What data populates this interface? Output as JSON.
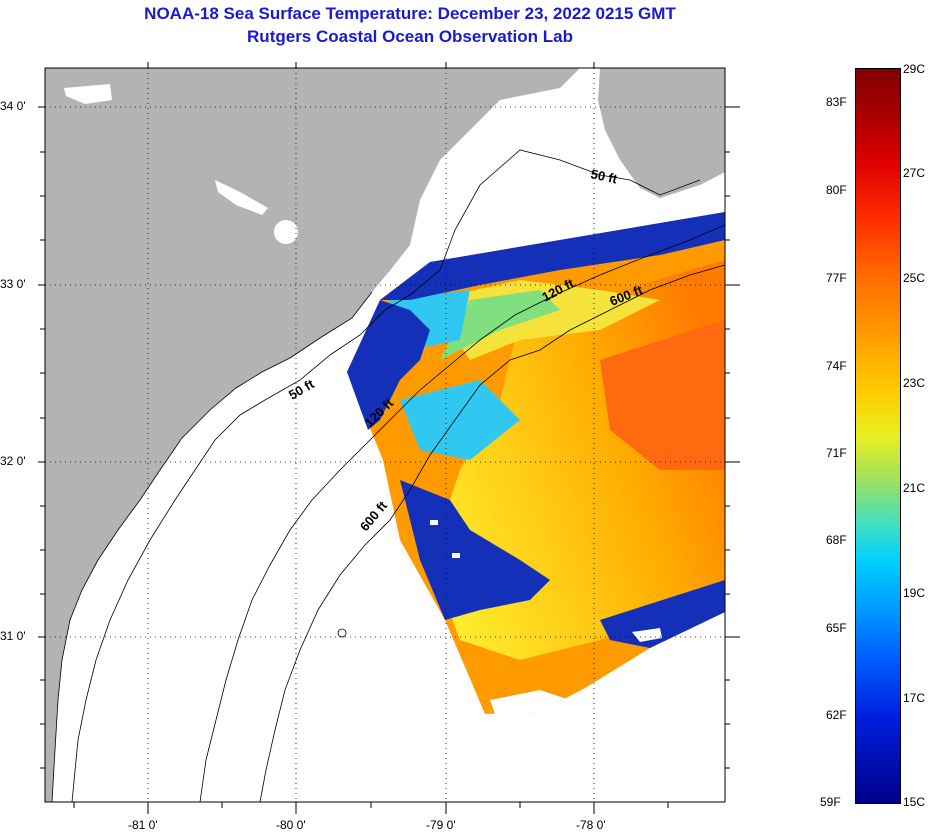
{
  "title": "NOAA-18 Sea Surface Temperature:  December 23, 2022 0215 GMT",
  "subtitle": "Rutgers Coastal Ocean Observation Lab",
  "map": {
    "lat_labels": [
      "34 0'",
      "33 0'",
      "32 0'",
      "31 0'"
    ],
    "lon_labels": [
      "-81 0'",
      "-80 0'",
      "-79 0'",
      "-78 0'"
    ],
    "land_color": "#b3b3b3",
    "isobath_labels": [
      "50 ft",
      "120 ft",
      "600 ft",
      "50 ft",
      "120 ft",
      "600 ft"
    ]
  },
  "colorbar": {
    "fahrenheit_labels": [
      "83F",
      "80F",
      "77F",
      "74F",
      "71F",
      "68F",
      "65F",
      "62F",
      "59F"
    ],
    "celsius_labels": [
      "29C",
      "27C",
      "25C",
      "23C",
      "21C",
      "19C",
      "17C",
      "15C"
    ]
  }
}
